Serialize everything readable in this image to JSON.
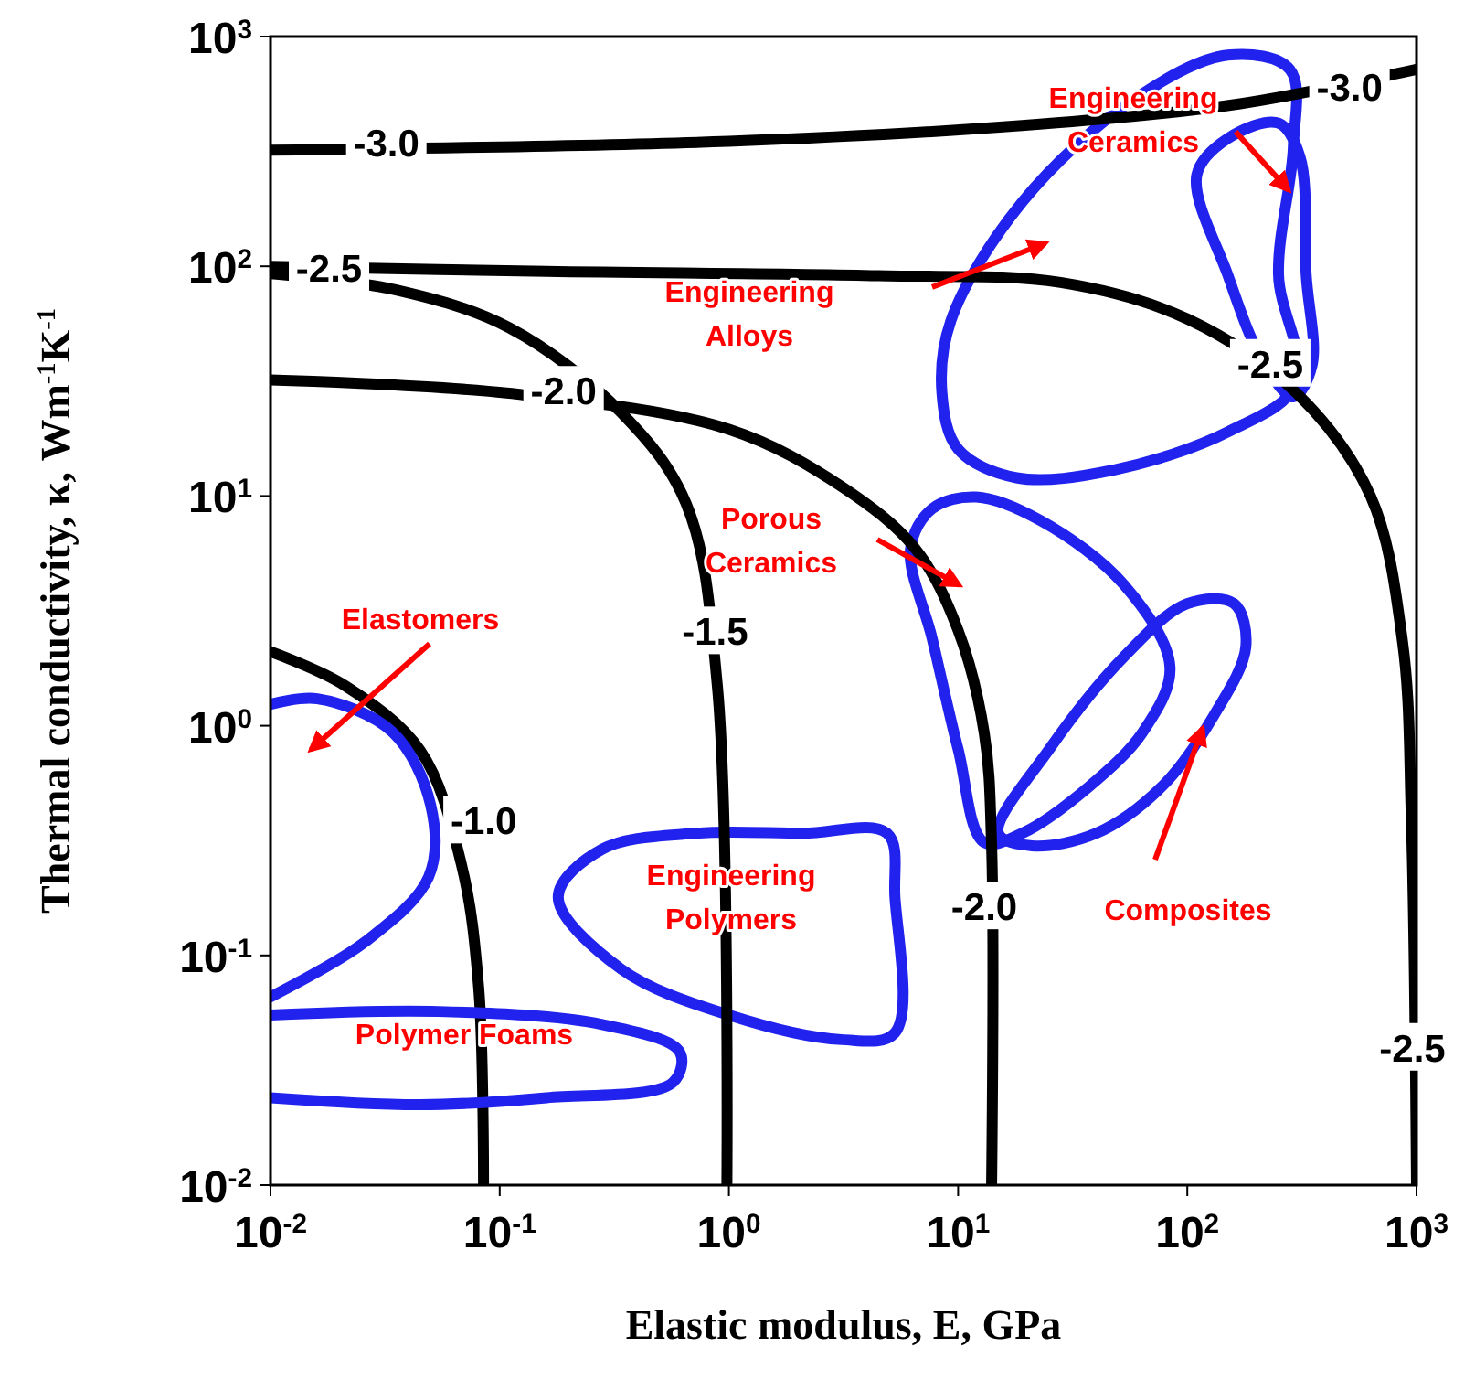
{
  "chart_data": {
    "type": "line",
    "xlabel": "Elastic modulus, E, GPa",
    "ylabel": "Thermal conductivity, κ, Wm$^{-1}$K$^{-1}$",
    "log": "xy",
    "grid": false,
    "marker": "none",
    "line_style": "solid",
    "xlim": [
      0.01,
      1000
    ],
    "ylim": [
      0.01,
      1000
    ],
    "xticks": [
      {
        "value": 0.01,
        "label": "10$^{-2}$"
      },
      {
        "value": 0.1,
        "label": "10$^{-1}$"
      },
      {
        "value": 1,
        "label": "10$^{0}$"
      },
      {
        "value": 10,
        "label": "10$^{1}$"
      },
      {
        "value": 100,
        "label": "10$^{2}$"
      },
      {
        "value": 1000,
        "label": "10$^{3}$"
      }
    ],
    "yticks": [
      {
        "value": 0.01,
        "label": "10$^{-2}$"
      },
      {
        "value": 0.1,
        "label": "10$^{-1}$"
      },
      {
        "value": 1,
        "label": "10$^{0}$"
      },
      {
        "value": 10,
        "label": "10$^{1}$"
      },
      {
        "value": 100,
        "label": "10$^{2}$"
      },
      {
        "value": 1000,
        "label": "10$^{3}$"
      }
    ],
    "series": [
      {
        "color": "#000000",
        "x": [
          0.01,
          1.0,
          19,
          170,
          1000
        ],
        "values": [
          320,
          350,
          410,
          510,
          720
        ]
      },
      {
        "color": "#000000",
        "x": [
          0.01,
          0.16,
          4.5,
          28,
          100,
          300,
          630,
          870,
          950,
          1000
        ],
        "values": [
          100,
          95,
          91,
          85,
          59,
          28,
          10,
          2.3,
          0.38,
          0.01
        ]
      },
      {
        "color": "#000000",
        "x": [
          0.01,
          0.11,
          1.0,
          3.1,
          6.5,
          10,
          13,
          14,
          14
        ],
        "values": [
          32,
          28,
          19.5,
          11,
          5.9,
          2.6,
          0.93,
          0.3,
          0.01
        ]
      },
      {
        "color": "#000000",
        "x": [
          0.01,
          0.035,
          0.11,
          0.34,
          0.65,
          0.89,
          0.98
        ],
        "values": [
          93,
          79,
          54,
          23,
          9.3,
          1.5,
          0.01
        ]
      },
      {
        "color": "#000000",
        "x": [
          0.01,
          0.021,
          0.045,
          0.068,
          0.081,
          0.085
        ],
        "values": [
          2.1,
          1.5,
          0.78,
          0.25,
          0.072,
          0.01
        ]
      },
      {
        "color": "#2222ee",
        "x": [
          0.01,
          0.016,
          0.034,
          0.05,
          0.049,
          0.026,
          0.01
        ],
        "values": [
          1.24,
          1.31,
          0.94,
          0.45,
          0.22,
          0.115,
          0.066
        ]
      },
      {
        "color": "#2222ee",
        "x": [
          0.01,
          0.054,
          0.28,
          0.61,
          0.57,
          0.16,
          0.045,
          0.01
        ],
        "values": [
          0.055,
          0.057,
          0.05,
          0.038,
          0.028,
          0.024,
          0.0224,
          0.024
        ]
      }
    ],
    "annotations": [
      {
        "text": "-3.0",
        "x": 0.032,
        "y": 350
      },
      {
        "text": "-2.5",
        "x": 0.018,
        "y": 99
      },
      {
        "text": "-2.0",
        "x": 0.19,
        "y": 29
      },
      {
        "text": "-1.5",
        "x": 0.87,
        "y": 2.6
      },
      {
        "text": "-1.0",
        "x": 0.085,
        "y": 0.39
      },
      {
        "text": "-2.0",
        "x": 13,
        "y": 0.165
      },
      {
        "text": "-2.5",
        "x": 960,
        "y": 0.04
      },
      {
        "text": "-3.0",
        "x": 510,
        "y": 610
      },
      {
        "text": "-2.5",
        "x": 230,
        "y": 38
      },
      "Elastomers",
      "Engineering\nCeramics",
      "Engineering\nAlloys",
      "Porous\nCeramics",
      "Composites",
      "Engineering\nPolymers",
      "Polymer Foams"
    ]
  }
}
